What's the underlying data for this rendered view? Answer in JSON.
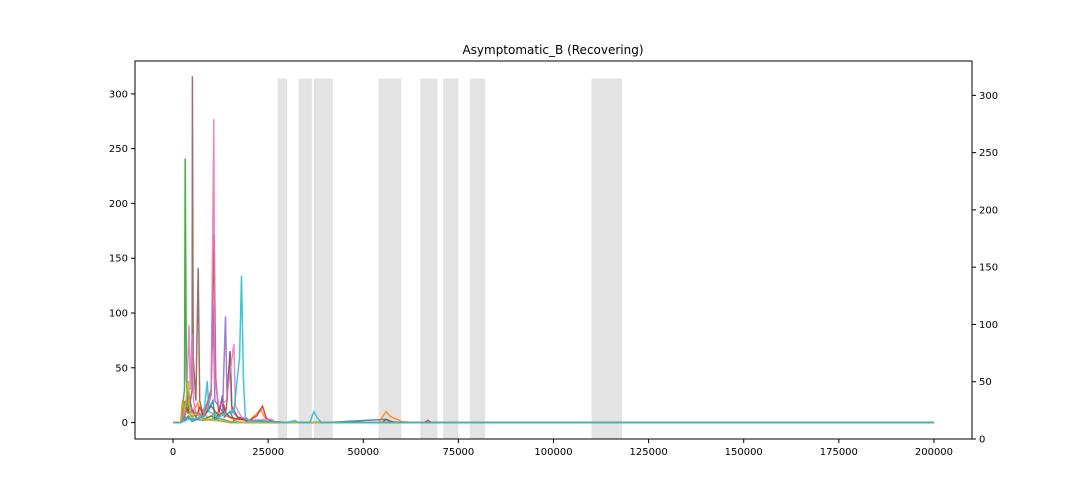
{
  "chart_data": {
    "type": "line",
    "title": "Asymptomatic_B (Recovering)",
    "xlabel": "",
    "ylabel": "",
    "xlim": [
      -10000,
      210000
    ],
    "ylim_left": [
      -15,
      330
    ],
    "ylim_right": [
      0,
      330
    ],
    "x_ticks": [
      0,
      25000,
      50000,
      75000,
      100000,
      125000,
      150000,
      175000,
      200000
    ],
    "y_ticks_left": [
      0,
      50,
      100,
      150,
      200,
      250,
      300
    ],
    "y_ticks_right": [
      0,
      50,
      100,
      150,
      200,
      250,
      300
    ],
    "grid": false,
    "legend": "none",
    "shaded_regions": [
      {
        "x0": 27500,
        "x1": 30000,
        "ymax": 314
      },
      {
        "x0": 33000,
        "x1": 36500,
        "ymax": 314
      },
      {
        "x0": 37000,
        "x1": 42000,
        "ymax": 314
      },
      {
        "x0": 54000,
        "x1": 60000,
        "ymax": 314
      },
      {
        "x0": 65000,
        "x1": 69500,
        "ymax": 314
      },
      {
        "x0": 71000,
        "x1": 75000,
        "ymax": 314
      },
      {
        "x0": 78000,
        "x1": 82000,
        "ymax": 314
      },
      {
        "x0": 110000,
        "x1": 118000,
        "ymax": 314
      }
    ],
    "series": [
      {
        "color": "#1f77b4",
        "points": [
          [
            0,
            0
          ],
          [
            2000,
            0
          ],
          [
            2500,
            8
          ],
          [
            3000,
            2
          ],
          [
            4000,
            6
          ],
          [
            5000,
            1
          ],
          [
            7000,
            4
          ],
          [
            9000,
            10
          ],
          [
            10500,
            20
          ],
          [
            11000,
            3
          ],
          [
            12000,
            8
          ],
          [
            13000,
            25
          ],
          [
            13500,
            5
          ],
          [
            15000,
            10
          ],
          [
            16000,
            2
          ],
          [
            18000,
            4
          ],
          [
            20000,
            0
          ],
          [
            40000,
            0
          ],
          [
            56000,
            3
          ],
          [
            57000,
            1
          ],
          [
            60000,
            0
          ],
          [
            200000,
            0
          ]
        ]
      },
      {
        "color": "#ff7f0e",
        "points": [
          [
            0,
            0
          ],
          [
            2000,
            0
          ],
          [
            2500,
            12
          ],
          [
            3000,
            5
          ],
          [
            4000,
            15
          ],
          [
            5000,
            8
          ],
          [
            6500,
            18
          ],
          [
            7000,
            5
          ],
          [
            8000,
            12
          ],
          [
            9000,
            4
          ],
          [
            12000,
            10
          ],
          [
            14000,
            6
          ],
          [
            16000,
            3
          ],
          [
            20000,
            2
          ],
          [
            22000,
            8
          ],
          [
            23000,
            12
          ],
          [
            24000,
            5
          ],
          [
            26000,
            1
          ],
          [
            30000,
            0
          ],
          [
            54000,
            0
          ],
          [
            56000,
            10
          ],
          [
            57000,
            6
          ],
          [
            58000,
            4
          ],
          [
            59000,
            3
          ],
          [
            60000,
            1
          ],
          [
            63000,
            0
          ],
          [
            200000,
            0
          ]
        ]
      },
      {
        "color": "#2ca02c",
        "points": [
          [
            0,
            0
          ],
          [
            2000,
            0
          ],
          [
            2500,
            15
          ],
          [
            3000,
            30
          ],
          [
            3200,
            241
          ],
          [
            3500,
            40
          ],
          [
            4000,
            10
          ],
          [
            5000,
            5
          ],
          [
            6000,
            8
          ],
          [
            8000,
            3
          ],
          [
            10000,
            6
          ],
          [
            12000,
            2
          ],
          [
            15000,
            0
          ],
          [
            200000,
            0
          ]
        ]
      },
      {
        "color": "#d62728",
        "points": [
          [
            0,
            0
          ],
          [
            2000,
            0
          ],
          [
            2500,
            20
          ],
          [
            3000,
            10
          ],
          [
            4000,
            25
          ],
          [
            5000,
            12
          ],
          [
            6000,
            5
          ],
          [
            7000,
            14
          ],
          [
            8000,
            6
          ],
          [
            10000,
            30
          ],
          [
            10800,
            172
          ],
          [
            11200,
            40
          ],
          [
            12000,
            10
          ],
          [
            13000,
            20
          ],
          [
            14000,
            8
          ],
          [
            15000,
            5
          ],
          [
            16000,
            4
          ],
          [
            20000,
            2
          ],
          [
            22000,
            6
          ],
          [
            23500,
            15
          ],
          [
            24500,
            4
          ],
          [
            26000,
            1
          ],
          [
            30000,
            0
          ],
          [
            200000,
            0
          ]
        ]
      },
      {
        "color": "#9467bd",
        "points": [
          [
            0,
            0
          ],
          [
            2000,
            0
          ],
          [
            3000,
            5
          ],
          [
            4000,
            30
          ],
          [
            5000,
            10
          ],
          [
            7000,
            8
          ],
          [
            8000,
            5
          ],
          [
            9000,
            12
          ],
          [
            10000,
            25
          ],
          [
            10500,
            107
          ],
          [
            11000,
            20
          ],
          [
            12000,
            15
          ],
          [
            13000,
            10
          ],
          [
            13800,
            97
          ],
          [
            14200,
            20
          ],
          [
            15000,
            65
          ],
          [
            15500,
            10
          ],
          [
            17000,
            5
          ],
          [
            20000,
            2
          ],
          [
            24000,
            1
          ],
          [
            30000,
            0
          ],
          [
            200000,
            0
          ]
        ]
      },
      {
        "color": "#8c564b",
        "points": [
          [
            0,
            0
          ],
          [
            2000,
            0
          ],
          [
            3000,
            18
          ],
          [
            4000,
            8
          ],
          [
            5000,
            30
          ],
          [
            5100,
            316
          ],
          [
            5300,
            60
          ],
          [
            6000,
            20
          ],
          [
            6600,
            141
          ],
          [
            7000,
            20
          ],
          [
            8000,
            5
          ],
          [
            10000,
            15
          ],
          [
            12000,
            6
          ],
          [
            14000,
            12
          ],
          [
            15000,
            65
          ],
          [
            15400,
            15
          ],
          [
            17000,
            5
          ],
          [
            20000,
            2
          ],
          [
            30000,
            0
          ],
          [
            55000,
            0
          ],
          [
            56000,
            3
          ],
          [
            58000,
            0
          ],
          [
            66000,
            0
          ],
          [
            67000,
            2
          ],
          [
            68000,
            0
          ],
          [
            200000,
            0
          ]
        ]
      },
      {
        "color": "#e377c2",
        "points": [
          [
            0,
            0
          ],
          [
            2000,
            0
          ],
          [
            3500,
            20
          ],
          [
            4200,
            89
          ],
          [
            4500,
            30
          ],
          [
            5000,
            80
          ],
          [
            5400,
            20
          ],
          [
            6000,
            8
          ],
          [
            8000,
            5
          ],
          [
            10000,
            25
          ],
          [
            10700,
            277
          ],
          [
            11000,
            40
          ],
          [
            12000,
            15
          ],
          [
            14000,
            20
          ],
          [
            16000,
            72
          ],
          [
            16400,
            15
          ],
          [
            18000,
            5
          ],
          [
            20000,
            2
          ],
          [
            26000,
            3
          ],
          [
            27000,
            0
          ],
          [
            200000,
            0
          ]
        ]
      },
      {
        "color": "#7f7f7f",
        "points": [
          [
            0,
            0
          ],
          [
            2000,
            0
          ],
          [
            3000,
            5
          ],
          [
            5000,
            3
          ],
          [
            8000,
            2
          ],
          [
            12000,
            4
          ],
          [
            15000,
            1
          ],
          [
            20000,
            0
          ],
          [
            200000,
            0
          ]
        ]
      },
      {
        "color": "#bcbd22",
        "points": [
          [
            0,
            0
          ],
          [
            2000,
            0
          ],
          [
            2500,
            20
          ],
          [
            3000,
            10
          ],
          [
            4000,
            38
          ],
          [
            4500,
            5
          ],
          [
            6000,
            8
          ],
          [
            8000,
            3
          ],
          [
            10000,
            2
          ],
          [
            14000,
            1
          ],
          [
            20000,
            0
          ],
          [
            200000,
            0
          ]
        ]
      },
      {
        "color": "#17becf",
        "points": [
          [
            0,
            0
          ],
          [
            2000,
            0
          ],
          [
            4000,
            3
          ],
          [
            8000,
            5
          ],
          [
            9000,
            38
          ],
          [
            9400,
            10
          ],
          [
            12000,
            5
          ],
          [
            14000,
            8
          ],
          [
            16000,
            10
          ],
          [
            17500,
            60
          ],
          [
            18000,
            134
          ],
          [
            18500,
            40
          ],
          [
            19000,
            5
          ],
          [
            20000,
            2
          ],
          [
            30000,
            0
          ],
          [
            32000,
            2
          ],
          [
            33000,
            0
          ],
          [
            36000,
            0
          ],
          [
            37000,
            10
          ],
          [
            38000,
            4
          ],
          [
            39000,
            0
          ],
          [
            200000,
            0
          ]
        ]
      }
    ]
  }
}
